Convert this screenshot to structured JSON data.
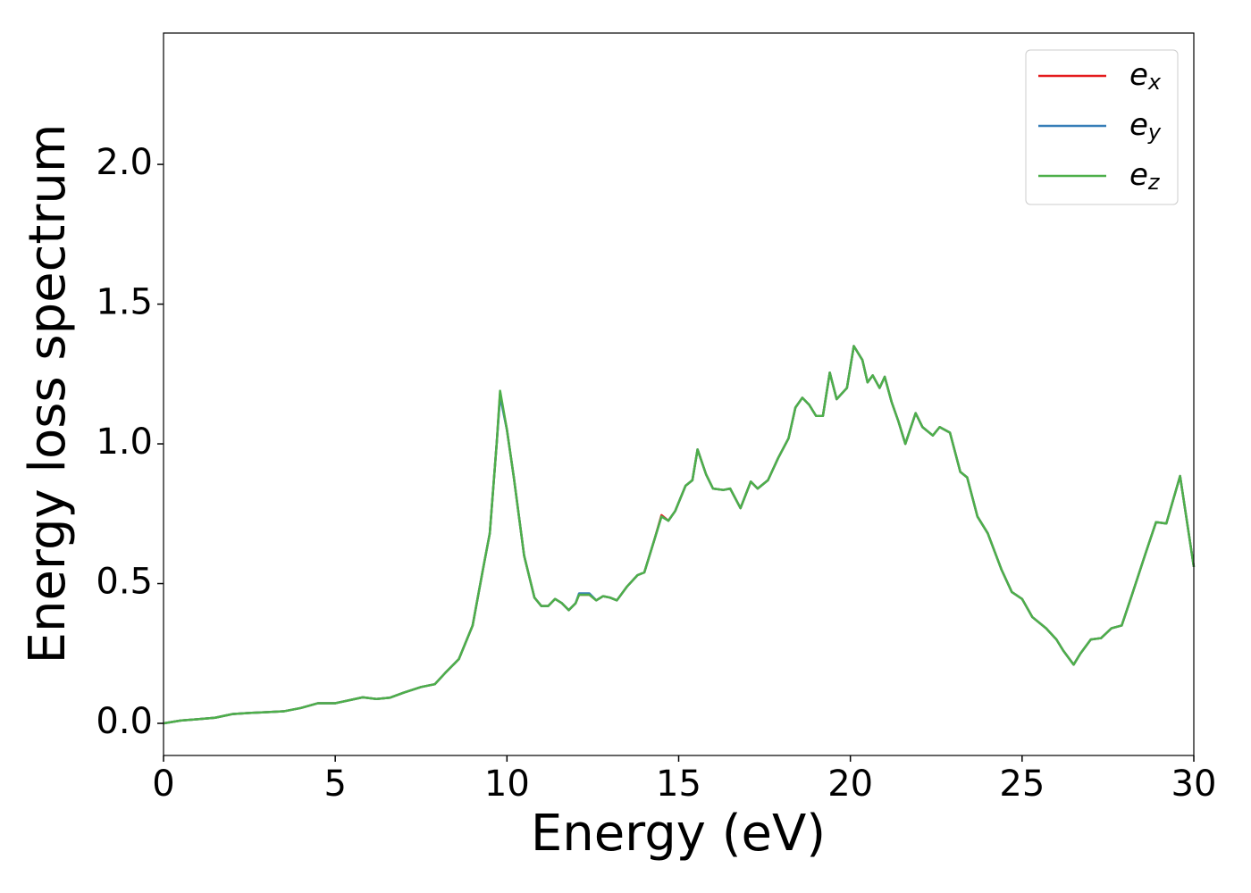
{
  "chart_data": {
    "type": "line",
    "xlabel": "Energy (eV)",
    "ylabel": "Energy loss spectrum",
    "x": [
      0,
      0.5,
      1,
      1.5,
      2,
      2.5,
      3,
      3.5,
      4,
      4.5,
      5,
      5.5,
      5.8,
      6.2,
      6.6,
      7,
      7.5,
      7.9,
      8.2,
      8.6,
      9,
      9.3,
      9.5,
      9.7,
      9.8,
      10,
      10.2,
      10.5,
      10.8,
      11,
      11.2,
      11.4,
      11.6,
      11.8,
      12,
      12.1,
      12.4,
      12.6,
      12.8,
      13,
      13.2,
      13.5,
      13.8,
      14,
      14.3,
      14.5,
      14.7,
      14.9,
      15.2,
      15.4,
      15.55,
      15.8,
      16,
      16.3,
      16.5,
      16.8,
      17.1,
      17.3,
      17.6,
      17.9,
      18.2,
      18.4,
      18.6,
      18.8,
      19,
      19.2,
      19.4,
      19.6,
      19.9,
      20.1,
      20.35,
      20.5,
      20.65,
      20.85,
      21,
      21.2,
      21.4,
      21.6,
      21.9,
      22.1,
      22.4,
      22.6,
      22.9,
      23.2,
      23.4,
      23.7,
      24,
      24.4,
      24.7,
      25,
      25.3,
      25.7,
      26,
      26.2,
      26.5,
      26.7,
      27,
      27.3,
      27.6,
      27.9,
      28.2,
      28.6,
      28.9,
      29.2,
      29.6,
      30
    ],
    "series": [
      {
        "name": "e_x",
        "color": "#e41a1c",
        "values": [
          0,
          0.01,
          0.015,
          0.02,
          0.033,
          0.037,
          0.04,
          0.043,
          0.055,
          0.072,
          0.072,
          0.085,
          0.093,
          0.087,
          0.092,
          0.11,
          0.13,
          0.14,
          0.18,
          0.23,
          0.35,
          0.55,
          0.68,
          1.0,
          1.18,
          1.05,
          0.88,
          0.6,
          0.45,
          0.42,
          0.42,
          0.445,
          0.43,
          0.405,
          0.43,
          0.46,
          0.46,
          0.44,
          0.455,
          0.45,
          0.44,
          0.49,
          0.53,
          0.54,
          0.66,
          0.745,
          0.725,
          0.76,
          0.85,
          0.87,
          0.98,
          0.89,
          0.84,
          0.835,
          0.84,
          0.77,
          0.865,
          0.84,
          0.87,
          0.95,
          1.02,
          1.13,
          1.165,
          1.14,
          1.1,
          1.1,
          1.255,
          1.16,
          1.2,
          1.35,
          1.3,
          1.22,
          1.245,
          1.2,
          1.24,
          1.15,
          1.08,
          1.0,
          1.11,
          1.06,
          1.03,
          1.06,
          1.04,
          0.9,
          0.88,
          0.74,
          0.68,
          0.55,
          0.47,
          0.445,
          0.38,
          0.34,
          0.3,
          0.26,
          0.21,
          0.25,
          0.3,
          0.305,
          0.34,
          0.35,
          0.46,
          0.61,
          0.72,
          0.715,
          0.885,
          0.56
        ]
      },
      {
        "name": "e_y",
        "color": "#377eb8",
        "values": [
          0,
          0.01,
          0.015,
          0.02,
          0.033,
          0.037,
          0.04,
          0.043,
          0.055,
          0.072,
          0.072,
          0.085,
          0.093,
          0.087,
          0.092,
          0.11,
          0.13,
          0.14,
          0.18,
          0.23,
          0.35,
          0.55,
          0.68,
          1.0,
          1.17,
          1.05,
          0.88,
          0.6,
          0.45,
          0.42,
          0.42,
          0.445,
          0.43,
          0.405,
          0.43,
          0.465,
          0.465,
          0.44,
          0.455,
          0.45,
          0.44,
          0.49,
          0.53,
          0.54,
          0.66,
          0.74,
          0.725,
          0.76,
          0.85,
          0.87,
          0.98,
          0.89,
          0.84,
          0.835,
          0.84,
          0.77,
          0.865,
          0.84,
          0.87,
          0.95,
          1.02,
          1.13,
          1.165,
          1.14,
          1.1,
          1.1,
          1.255,
          1.16,
          1.2,
          1.35,
          1.3,
          1.22,
          1.245,
          1.2,
          1.24,
          1.15,
          1.08,
          1.0,
          1.11,
          1.06,
          1.03,
          1.06,
          1.04,
          0.9,
          0.88,
          0.74,
          0.68,
          0.55,
          0.47,
          0.445,
          0.38,
          0.34,
          0.3,
          0.26,
          0.21,
          0.25,
          0.3,
          0.305,
          0.34,
          0.35,
          0.46,
          0.61,
          0.72,
          0.715,
          0.885,
          0.56
        ]
      },
      {
        "name": "e_z",
        "color": "#4daf4a",
        "values": [
          0,
          0.01,
          0.015,
          0.02,
          0.033,
          0.037,
          0.04,
          0.043,
          0.055,
          0.072,
          0.072,
          0.085,
          0.093,
          0.087,
          0.092,
          0.11,
          0.13,
          0.14,
          0.18,
          0.23,
          0.35,
          0.55,
          0.68,
          1.0,
          1.19,
          1.05,
          0.88,
          0.6,
          0.45,
          0.42,
          0.42,
          0.445,
          0.43,
          0.405,
          0.43,
          0.46,
          0.46,
          0.44,
          0.455,
          0.45,
          0.44,
          0.49,
          0.53,
          0.54,
          0.66,
          0.74,
          0.725,
          0.76,
          0.85,
          0.87,
          0.98,
          0.89,
          0.84,
          0.835,
          0.84,
          0.77,
          0.865,
          0.84,
          0.87,
          0.95,
          1.02,
          1.13,
          1.165,
          1.14,
          1.1,
          1.1,
          1.255,
          1.16,
          1.2,
          1.35,
          1.3,
          1.22,
          1.245,
          1.2,
          1.24,
          1.15,
          1.08,
          1.0,
          1.11,
          1.06,
          1.03,
          1.06,
          1.04,
          0.9,
          0.88,
          0.74,
          0.68,
          0.55,
          0.47,
          0.445,
          0.38,
          0.34,
          0.3,
          0.26,
          0.21,
          0.25,
          0.3,
          0.305,
          0.34,
          0.35,
          0.46,
          0.61,
          0.72,
          0.715,
          0.885,
          0.56
        ]
      }
    ],
    "xlim": [
      0,
      30
    ],
    "xticks": [
      0,
      5,
      10,
      15,
      20,
      25,
      30
    ],
    "ylim": [
      -0.115,
      2.47
    ],
    "yticks": [
      {
        "value": 0,
        "label": "0.0"
      },
      0.5,
      {
        "value": 1,
        "label": "1.0"
      },
      1.5,
      {
        "value": 2,
        "label": "2.0"
      }
    ],
    "legend": "upper right",
    "grid": false
  }
}
